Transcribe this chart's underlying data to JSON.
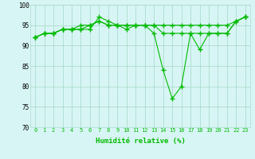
{
  "title": "",
  "xlabel": "Humidité relative (%)",
  "ylabel": "",
  "background_color": "#d8f5f5",
  "grid_color": "#aaddcc",
  "line_color": "#00bb00",
  "marker": "+",
  "xlim": [
    -0.5,
    23.5
  ],
  "ylim": [
    70,
    100
  ],
  "yticks": [
    70,
    75,
    80,
    85,
    90,
    95,
    100
  ],
  "xticks": [
    0,
    1,
    2,
    3,
    4,
    5,
    6,
    7,
    8,
    9,
    10,
    11,
    12,
    13,
    14,
    15,
    16,
    17,
    18,
    19,
    20,
    21,
    22,
    23
  ],
  "series": [
    [
      92,
      93,
      93,
      94,
      94,
      94,
      94,
      97,
      96,
      95,
      94,
      95,
      95,
      93,
      84,
      77,
      80,
      93,
      89,
      93,
      93,
      93,
      96,
      97
    ],
    [
      92,
      93,
      93,
      94,
      94,
      95,
      95,
      96,
      95,
      95,
      95,
      95,
      95,
      95,
      95,
      95,
      95,
      95,
      95,
      95,
      95,
      95,
      96,
      97
    ],
    [
      92,
      93,
      93,
      94,
      94,
      94,
      95,
      96,
      95,
      95,
      95,
      95,
      95,
      95,
      93,
      93,
      93,
      93,
      93,
      93,
      93,
      93,
      96,
      97
    ]
  ]
}
